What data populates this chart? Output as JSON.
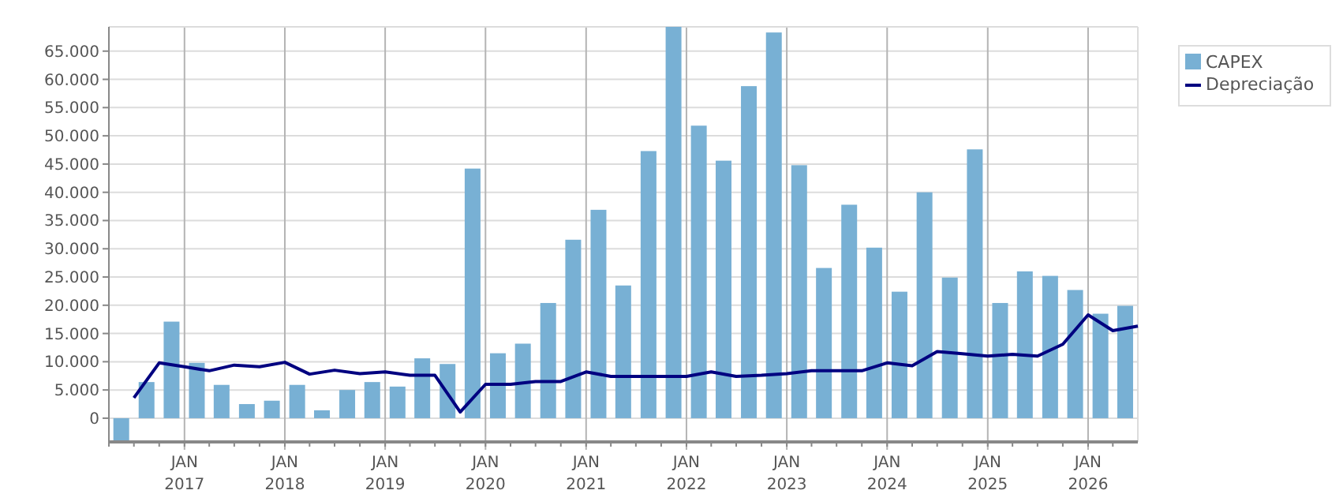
{
  "chart_data": {
    "type": "bar",
    "xlim": [
      "2016-04-01",
      "2026-07-01"
    ],
    "ylim": [
      -4200,
      69300
    ],
    "xticks": [
      {
        "value": "2017-01-01",
        "label": "JAN\n2017"
      },
      {
        "value": "2018-01-01",
        "label": "JAN\n2018"
      },
      {
        "value": "2019-01-01",
        "label": "JAN\n2019"
      },
      {
        "value": "2020-01-01",
        "label": "JAN\n2020"
      },
      {
        "value": "2021-01-01",
        "label": "JAN\n2021"
      },
      {
        "value": "2022-01-01",
        "label": "JAN\n2022"
      },
      {
        "value": "2023-01-01",
        "label": "JAN\n2023"
      },
      {
        "value": "2024-01-01",
        "label": "JAN\n2024"
      },
      {
        "value": "2025-01-01",
        "label": "JAN\n2025"
      },
      {
        "value": "2026-01-01",
        "label": "JAN\n2026"
      }
    ],
    "yticks": [
      0,
      {
        "value": 5000,
        "label": "5.000"
      },
      {
        "value": 10000,
        "label": "10.000"
      },
      {
        "value": 15000,
        "label": "15.000"
      },
      {
        "value": 20000,
        "label": "20.000"
      },
      {
        "value": 25000,
        "label": "25.000"
      },
      {
        "value": 30000,
        "label": "30.000"
      },
      {
        "value": 35000,
        "label": "35.000"
      },
      {
        "value": 40000,
        "label": "40.000"
      },
      {
        "value": 45000,
        "label": "45.000"
      },
      {
        "value": 50000,
        "label": "50.000"
      },
      {
        "value": 55000,
        "label": "55.000"
      },
      {
        "value": 60000,
        "label": "60.000"
      },
      {
        "value": 65000,
        "label": "65.000"
      }
    ],
    "grid": true,
    "legend": "top right",
    "series": [
      {
        "name": "CAPEX",
        "color": "#78b0d4",
        "x": [
          "2016-05-16",
          "2016-08-16",
          "2016-11-15",
          "2017-02-15",
          "2017-05-16",
          "2017-08-16",
          "2017-11-15",
          "2018-02-15",
          "2018-05-16",
          "2018-08-16",
          "2018-11-15",
          "2019-02-15",
          "2019-05-16",
          "2019-08-16",
          "2019-11-15",
          "2020-02-15",
          "2020-05-16",
          "2020-08-16",
          "2020-11-15",
          "2021-02-15",
          "2021-05-16",
          "2021-08-16",
          "2021-11-15",
          "2022-02-15",
          "2022-05-16",
          "2022-08-16",
          "2022-11-15",
          "2023-02-15",
          "2023-05-16",
          "2023-08-16",
          "2023-11-15",
          "2024-02-15",
          "2024-05-16",
          "2024-08-16",
          "2024-11-15",
          "2025-02-15",
          "2025-05-16",
          "2025-08-16",
          "2025-11-15",
          "2026-02-15",
          "2026-05-16"
        ],
        "values": [
          -4000,
          6400,
          17100,
          9800,
          5900,
          2500,
          3100,
          5900,
          1400,
          5000,
          6400,
          5600,
          10600,
          9600,
          44200,
          11500,
          13200,
          20400,
          31600,
          36900,
          23500,
          47300,
          69300,
          51800,
          45600,
          58800,
          68300,
          44800,
          26600,
          37800,
          30200,
          22400,
          40000,
          24900,
          47600,
          20400,
          26000,
          25200,
          22700,
          18500,
          19900
        ]
      },
      {
        "name": "Depreciação",
        "type": "line",
        "color": "#000080",
        "marker": "none",
        "line_style": "solid",
        "x": [
          "2016-07-01",
          "2016-10-01",
          "2017-01-01",
          "2017-04-01",
          "2017-07-01",
          "2017-10-01",
          "2018-01-01",
          "2018-04-01",
          "2018-07-01",
          "2018-10-01",
          "2019-01-01",
          "2019-04-01",
          "2019-07-01",
          "2019-10-01",
          "2020-01-01",
          "2020-04-01",
          "2020-07-01",
          "2020-10-01",
          "2021-01-01",
          "2021-04-01",
          "2021-07-01",
          "2021-10-01",
          "2022-01-01",
          "2022-04-01",
          "2022-07-01",
          "2022-10-01",
          "2023-01-01",
          "2023-04-01",
          "2023-07-01",
          "2023-10-01",
          "2024-01-01",
          "2024-04-01",
          "2024-07-01",
          "2024-10-01",
          "2025-01-01",
          "2025-04-01",
          "2025-07-01",
          "2025-10-01",
          "2026-01-01",
          "2026-04-01",
          "2026-07-01"
        ],
        "values": [
          3600,
          9800,
          9100,
          8400,
          9400,
          9100,
          9900,
          7800,
          8500,
          7900,
          8200,
          7600,
          7600,
          1100,
          6000,
          6000,
          6500,
          6500,
          8200,
          7400,
          7400,
          7400,
          7400,
          8200,
          7400,
          7600,
          7900,
          8400,
          8400,
          8400,
          9800,
          9300,
          11800,
          11400,
          11000,
          11300,
          11000,
          13100,
          18300,
          15500,
          16300
        ]
      }
    ]
  }
}
